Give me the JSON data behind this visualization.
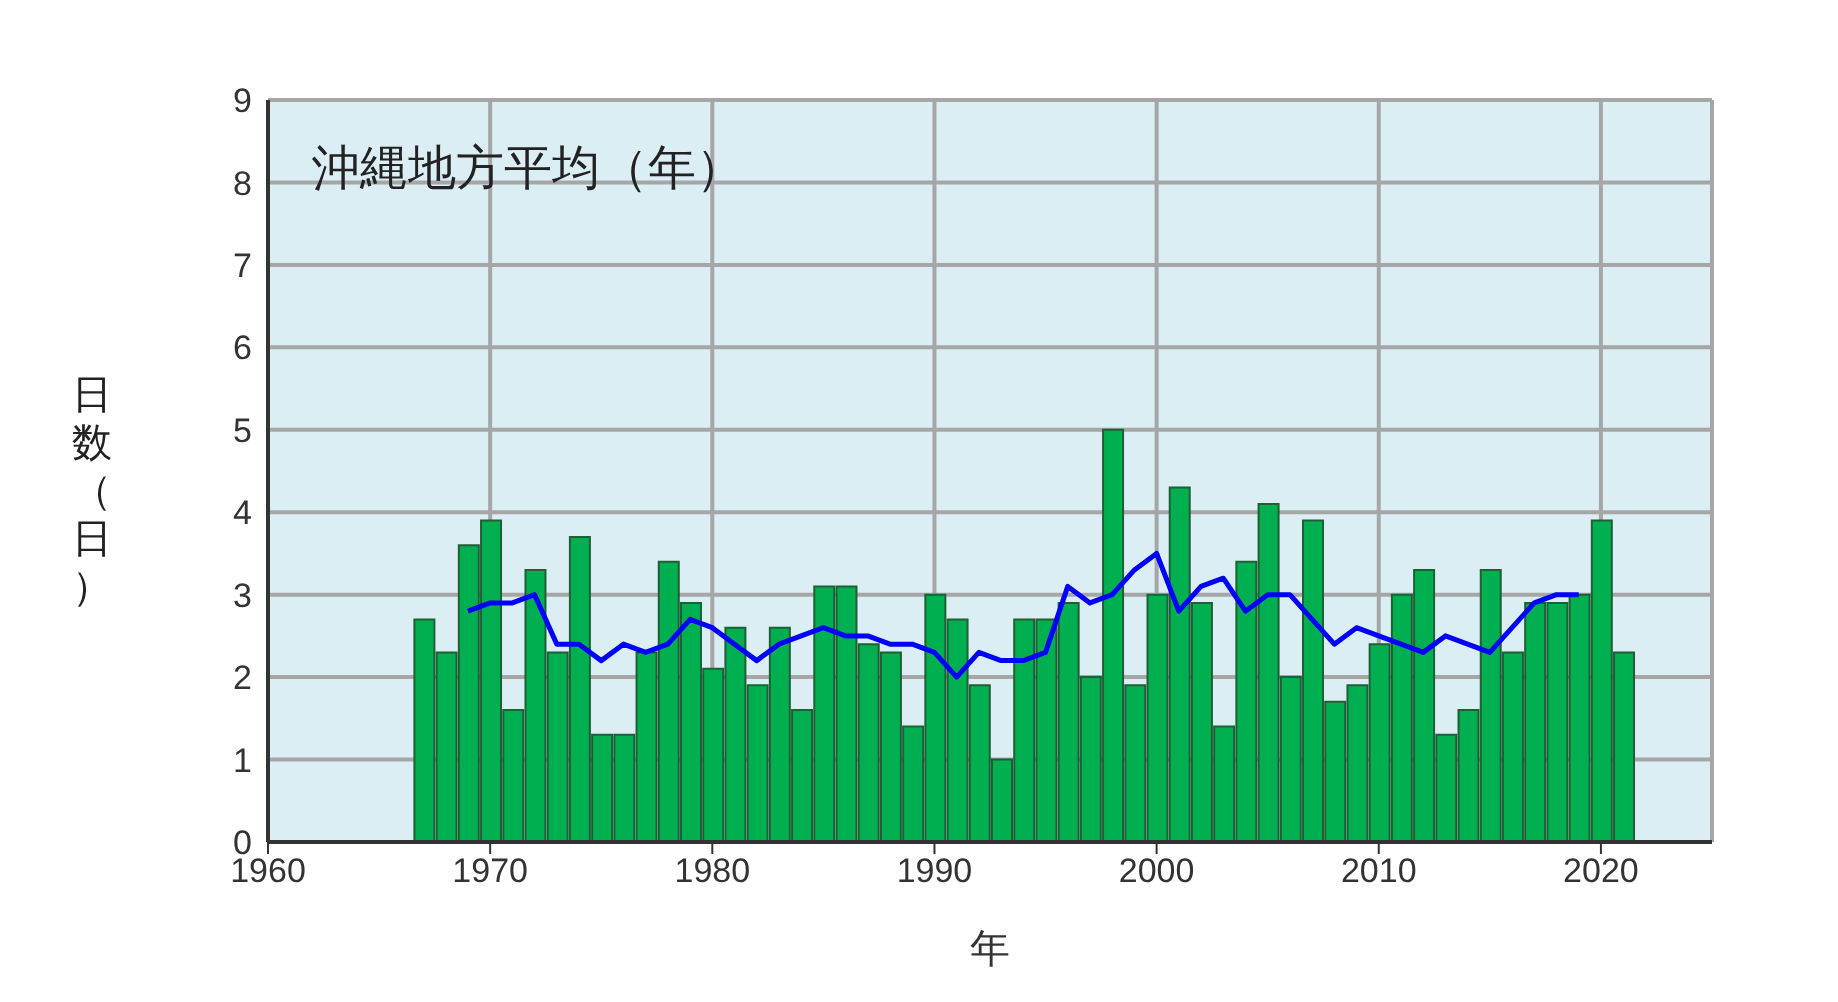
{
  "chart_data": {
    "type": "bar",
    "title": "沖縄地方平均（年）",
    "xlabel": "年",
    "ylabel": "日数（日）",
    "x": [
      1967,
      1968,
      1969,
      1970,
      1971,
      1972,
      1973,
      1974,
      1975,
      1976,
      1977,
      1978,
      1979,
      1980,
      1981,
      1982,
      1983,
      1984,
      1985,
      1986,
      1987,
      1988,
      1989,
      1990,
      1991,
      1992,
      1993,
      1994,
      1995,
      1996,
      1997,
      1998,
      1999,
      2000,
      2001,
      2002,
      2003,
      2004,
      2005,
      2006,
      2007,
      2008,
      2009,
      2010,
      2011,
      2012,
      2013,
      2014,
      2015,
      2016,
      2017,
      2018,
      2019,
      2020,
      2021
    ],
    "series": [
      {
        "color": "#00b050",
        "values": [
          2.7,
          2.3,
          3.6,
          3.9,
          1.6,
          3.3,
          2.3,
          3.7,
          1.3,
          1.3,
          2.3,
          3.4,
          2.9,
          2.1,
          2.6,
          1.9,
          2.6,
          1.6,
          3.1,
          3.1,
          2.4,
          2.3,
          1.4,
          3.0,
          2.7,
          1.9,
          1.0,
          2.7,
          2.7,
          2.9,
          2.0,
          5.0,
          1.9,
          3.0,
          4.3,
          2.9,
          1.4,
          3.4,
          4.1,
          2.0,
          3.9,
          1.7,
          1.9,
          2.4,
          3.0,
          3.3,
          1.3,
          1.6,
          3.3,
          2.3,
          2.9,
          2.9,
          3.0,
          3.9,
          2.3
        ]
      },
      {
        "type": "line",
        "color": "#0000ff",
        "x": [
          1969,
          1970,
          1971,
          1972,
          1973,
          1974,
          1975,
          1976,
          1977,
          1978,
          1979,
          1980,
          1981,
          1982,
          1983,
          1984,
          1985,
          1986,
          1987,
          1988,
          1989,
          1990,
          1991,
          1992,
          1993,
          1994,
          1995,
          1996,
          1997,
          1998,
          1999,
          2000,
          2001,
          2002,
          2003,
          2004,
          2005,
          2006,
          2007,
          2008,
          2009,
          2010,
          2011,
          2012,
          2013,
          2014,
          2015,
          2016,
          2017,
          2018,
          2019
        ],
        "values": [
          2.8,
          2.9,
          2.9,
          3.0,
          2.4,
          2.4,
          2.2,
          2.4,
          2.3,
          2.4,
          2.7,
          2.6,
          2.4,
          2.2,
          2.4,
          2.5,
          2.6,
          2.5,
          2.5,
          2.4,
          2.4,
          2.3,
          2.0,
          2.3,
          2.2,
          2.2,
          2.3,
          3.1,
          2.9,
          3.0,
          3.3,
          3.5,
          2.8,
          3.1,
          3.2,
          2.8,
          3.0,
          3.0,
          2.7,
          2.4,
          2.6,
          2.5,
          2.4,
          2.3,
          2.5,
          2.4,
          2.3,
          2.6,
          2.9,
          3.0,
          3.0
        ]
      }
    ],
    "xlim": [
      1960,
      2025
    ],
    "xticks": [
      1960,
      1970,
      1980,
      1990,
      2000,
      2010,
      2020
    ],
    "ylim": [
      0,
      9
    ],
    "yticks": [
      0,
      1,
      2,
      3,
      4,
      5,
      6,
      7,
      8,
      9
    ],
    "grid": true,
    "marker": "none",
    "line_style": "solid"
  }
}
